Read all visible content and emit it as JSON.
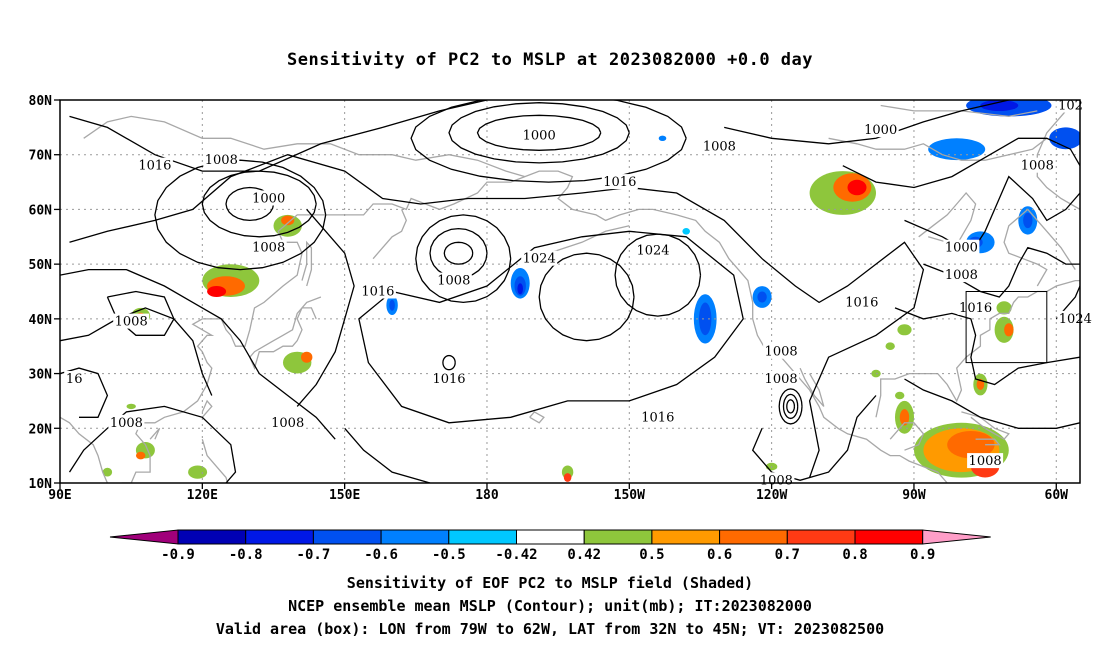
{
  "title": "Sensitivity of PC2 to MSLP at 2023082000 +0.0 day",
  "map": {
    "lon_range": [
      90,
      305
    ],
    "lat_range": [
      10,
      80
    ],
    "lat_ticks": [
      {
        "value": 80,
        "label": "80N"
      },
      {
        "value": 70,
        "label": "70N"
      },
      {
        "value": 60,
        "label": "60N"
      },
      {
        "value": 50,
        "label": "50N"
      },
      {
        "value": 40,
        "label": "40N"
      },
      {
        "value": 30,
        "label": "30N"
      },
      {
        "value": 20,
        "label": "20N"
      },
      {
        "value": 10,
        "label": "10N"
      }
    ],
    "lon_ticks": [
      {
        "value": 90,
        "label": "90E"
      },
      {
        "value": 120,
        "label": "120E"
      },
      {
        "value": 150,
        "label": "150E"
      },
      {
        "value": 180,
        "label": "180"
      },
      {
        "value": 210,
        "label": "150W"
      },
      {
        "value": 240,
        "label": "120W"
      },
      {
        "value": 270,
        "label": "90W"
      },
      {
        "value": 300,
        "label": "60W"
      }
    ],
    "valid_box": {
      "lon_min": 281,
      "lon_max": 298,
      "lat_min": 32,
      "lat_max": 45
    },
    "contour_labels": [
      {
        "text": "1016",
        "lon": 110,
        "lat": 68
      },
      {
        "text": "1008",
        "lon": 124,
        "lat": 69
      },
      {
        "text": "1000",
        "lon": 134,
        "lat": 62
      },
      {
        "text": "1008",
        "lon": 134,
        "lat": 53
      },
      {
        "text": "1008",
        "lon": 105,
        "lat": 39.5
      },
      {
        "text": "16",
        "lon": 93,
        "lat": 29
      },
      {
        "text": "1008",
        "lon": 104,
        "lat": 21
      },
      {
        "text": "1008",
        "lon": 138,
        "lat": 21
      },
      {
        "text": "1016",
        "lon": 157,
        "lat": 45
      },
      {
        "text": "1008",
        "lon": 173,
        "lat": 47
      },
      {
        "text": "1016",
        "lon": 172,
        "lat": 29
      },
      {
        "text": "1000",
        "lon": 191,
        "lat": 73.5
      },
      {
        "text": "1024",
        "lon": 191,
        "lat": 51
      },
      {
        "text": "1016",
        "lon": 208,
        "lat": 65
      },
      {
        "text": "1024",
        "lon": 215,
        "lat": 52.5
      },
      {
        "text": "1008",
        "lon": 229,
        "lat": 71.5
      },
      {
        "text": "1016",
        "lon": 216,
        "lat": 22
      },
      {
        "text": "1008",
        "lon": 242,
        "lat": 34
      },
      {
        "text": "1008",
        "lon": 242,
        "lat": 29
      },
      {
        "text": "1008",
        "lon": 241,
        "lat": 10.5
      },
      {
        "text": "1016",
        "lon": 259,
        "lat": 43
      },
      {
        "text": "1000",
        "lon": 263,
        "lat": 74.5
      },
      {
        "text": "1008",
        "lon": 296,
        "lat": 68
      },
      {
        "text": "1000",
        "lon": 280,
        "lat": 53
      },
      {
        "text": "1008",
        "lon": 280,
        "lat": 48
      },
      {
        "text": "1016",
        "lon": 283,
        "lat": 42
      },
      {
        "text": "1024",
        "lon": 304,
        "lat": 40
      },
      {
        "text": "1008",
        "lon": 285,
        "lat": 14
      },
      {
        "text": "102",
        "lon": 303,
        "lat": 79
      }
    ]
  },
  "legend": {
    "levels": [
      "-0.9",
      "-0.8",
      "-0.7",
      "-0.6",
      "-0.5",
      "-0.42",
      "0.42",
      "0.5",
      "0.6",
      "0.7",
      "0.8",
      "0.9"
    ],
    "colors": [
      "#a0007a",
      "#0000b4",
      "#0018e6",
      "#0050f0",
      "#0080ff",
      "#00c8ff",
      "#ffffff",
      "#8ec63c",
      "#ff9a00",
      "#ff6a00",
      "#ff3a14",
      "#ff0000",
      "#ff9ec8"
    ]
  },
  "captions": [
    "Sensitivity of EOF PC2 to MSLP field (Shaded)",
    "NCEP ensemble mean MSLP (Contour); unit(mb); IT:2023082000",
    "Valid area (box): LON from 79W to 62W, LAT from 32N to 45N; VT: 2023082500"
  ]
}
